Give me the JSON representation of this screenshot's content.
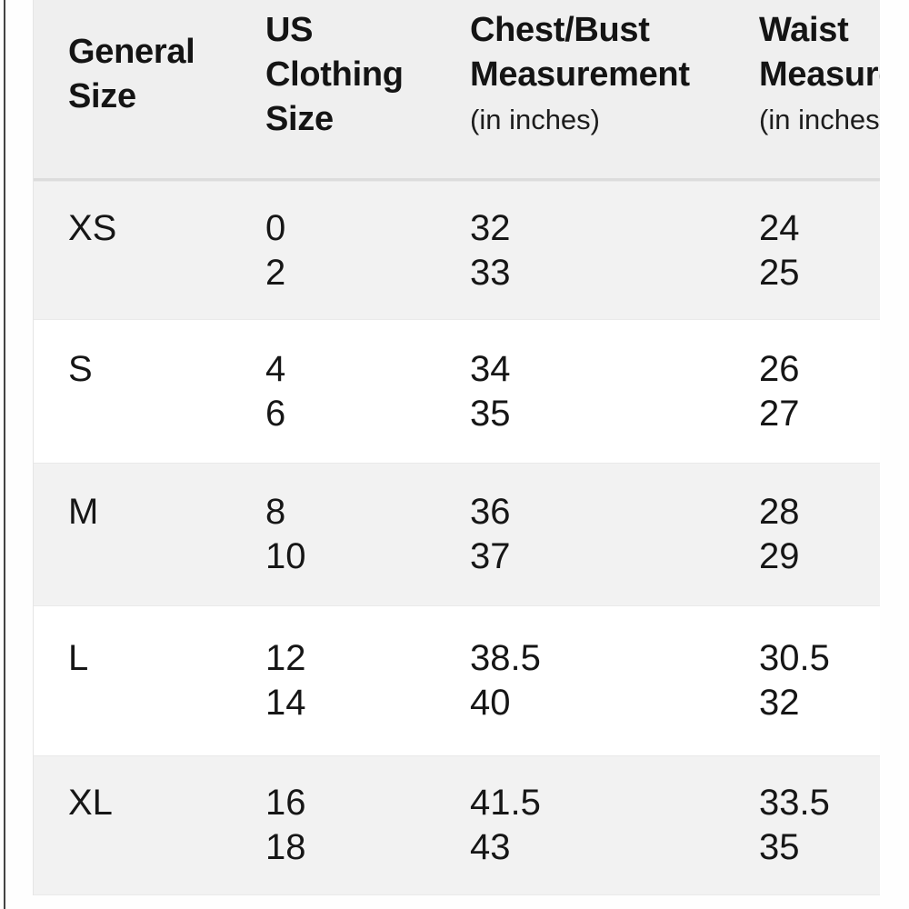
{
  "colors": {
    "header_bg": "#efefef",
    "row_alt_bg": "#f2f2f2",
    "row_bg": "#ffffff",
    "header_divider": "#dcdcdc",
    "screen_edge_line": "#434343",
    "text": "#161616"
  },
  "table": {
    "columns": [
      {
        "id": "general",
        "header_lines": [
          "General",
          "Size"
        ],
        "sub": ""
      },
      {
        "id": "us",
        "header_lines": [
          "US",
          "Clothing",
          "Size"
        ],
        "sub": ""
      },
      {
        "id": "chest",
        "header_lines": [
          "Chest/Bust",
          "Measurement"
        ],
        "sub": "(in inches)"
      },
      {
        "id": "waist",
        "header_lines": [
          "Waist",
          "Measurement"
        ],
        "sub": "(in inches)"
      }
    ],
    "rows": [
      {
        "general": "XS",
        "us": [
          "0",
          "2"
        ],
        "chest": [
          "32",
          "33"
        ],
        "waist": [
          "24",
          "25"
        ]
      },
      {
        "general": "S",
        "us": [
          "4",
          "6"
        ],
        "chest": [
          "34",
          "35"
        ],
        "waist": [
          "26",
          "27"
        ]
      },
      {
        "general": "M",
        "us": [
          "8",
          "10"
        ],
        "chest": [
          "36",
          "37"
        ],
        "waist": [
          "28",
          "29"
        ]
      },
      {
        "general": "L",
        "us": [
          "12",
          "14"
        ],
        "chest": [
          "38.5",
          "40"
        ],
        "waist": [
          "30.5",
          "32"
        ]
      },
      {
        "general": "XL",
        "us": [
          "16",
          "18"
        ],
        "chest": [
          "41.5",
          "43"
        ],
        "waist": [
          "33.5",
          "35"
        ]
      }
    ]
  }
}
